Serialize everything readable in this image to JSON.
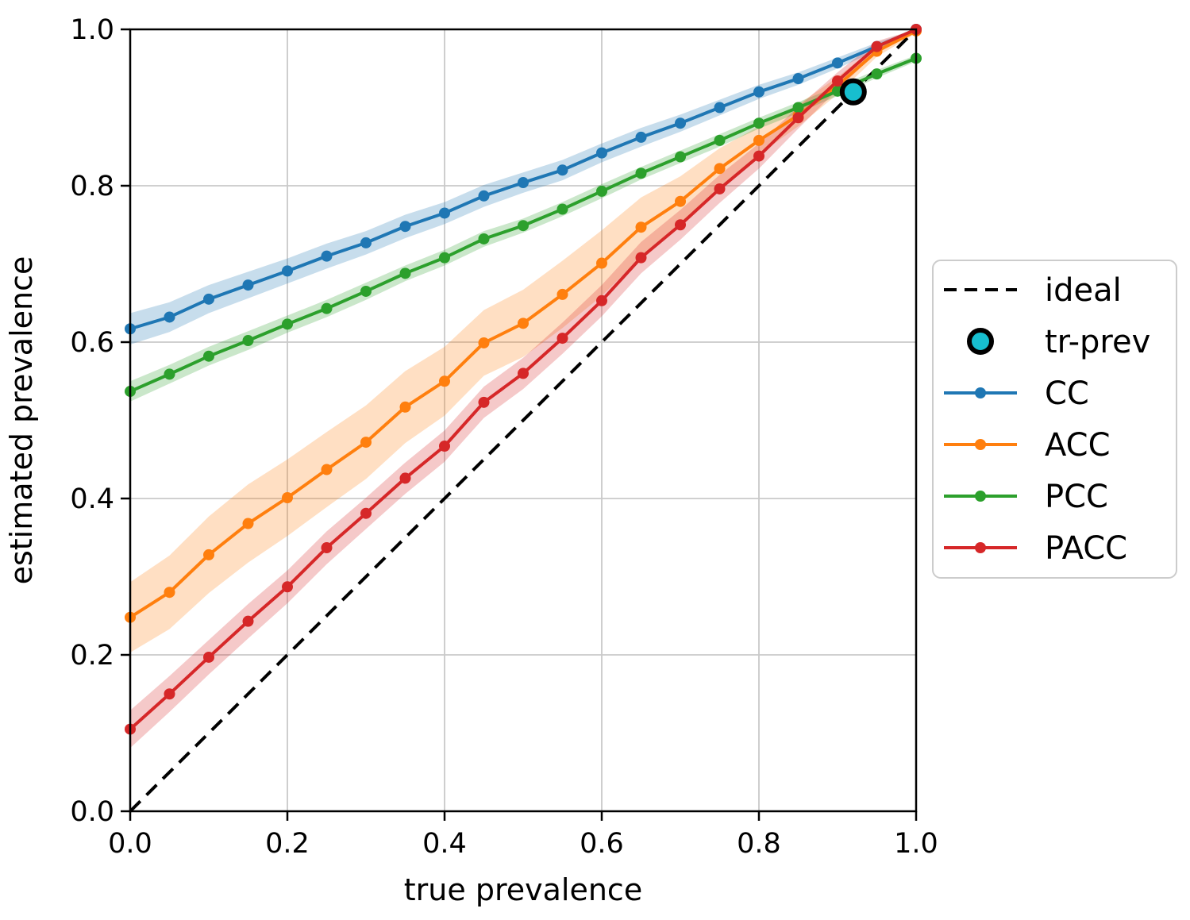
{
  "figure": {
    "background": "#ffffff"
  },
  "chart_data": {
    "type": "line",
    "title": "",
    "xlabel": "true prevalence",
    "ylabel": "estimated prevalence",
    "xlim": [
      0.0,
      1.0
    ],
    "ylim": [
      0.0,
      1.0
    ],
    "grid": true,
    "xticks": {
      "values": [
        0.0,
        0.2,
        0.4,
        0.6,
        0.8,
        1.0
      ],
      "labels": [
        "0.0",
        "0.2",
        "0.4",
        "0.6",
        "0.8",
        "1.0"
      ]
    },
    "yticks": {
      "values": [
        0.0,
        0.2,
        0.4,
        0.6,
        0.8,
        1.0
      ],
      "labels": [
        "0.0",
        "0.2",
        "0.4",
        "0.6",
        "0.8",
        "1.0"
      ]
    },
    "x": [
      0.0,
      0.05,
      0.1,
      0.15,
      0.2,
      0.25,
      0.3,
      0.35,
      0.4,
      0.45,
      0.5,
      0.55,
      0.6,
      0.65,
      0.7,
      0.75,
      0.8,
      0.85,
      0.9,
      0.95,
      1.0
    ],
    "series": [
      {
        "name": "CC",
        "color": "#1f77b4",
        "values": [
          0.617,
          0.632,
          0.655,
          0.673,
          0.691,
          0.71,
          0.727,
          0.748,
          0.765,
          0.787,
          0.804,
          0.82,
          0.842,
          0.862,
          0.88,
          0.9,
          0.92,
          0.937,
          0.957,
          0.978,
          1.0
        ],
        "band": [
          0.02,
          0.019,
          0.018,
          0.017,
          0.016,
          0.016,
          0.015,
          0.015,
          0.014,
          0.014,
          0.013,
          0.013,
          0.012,
          0.012,
          0.011,
          0.01,
          0.009,
          0.008,
          0.007,
          0.005,
          0.002
        ]
      },
      {
        "name": "ACC",
        "color": "#ff7f0e",
        "values": [
          0.248,
          0.28,
          0.328,
          0.368,
          0.401,
          0.437,
          0.472,
          0.517,
          0.55,
          0.599,
          0.624,
          0.661,
          0.701,
          0.747,
          0.78,
          0.822,
          0.858,
          0.89,
          0.928,
          0.972,
          0.998
        ],
        "band": [
          0.045,
          0.047,
          0.049,
          0.05,
          0.049,
          0.048,
          0.047,
          0.046,
          0.044,
          0.042,
          0.043,
          0.043,
          0.042,
          0.038,
          0.032,
          0.026,
          0.018,
          0.014,
          0.011,
          0.007,
          0.003
        ]
      },
      {
        "name": "PCC",
        "color": "#2ca02c",
        "values": [
          0.537,
          0.559,
          0.582,
          0.602,
          0.623,
          0.643,
          0.665,
          0.688,
          0.708,
          0.732,
          0.749,
          0.77,
          0.793,
          0.816,
          0.837,
          0.858,
          0.88,
          0.9,
          0.921,
          0.943,
          0.963
        ],
        "band": [
          0.013,
          0.012,
          0.012,
          0.012,
          0.011,
          0.011,
          0.011,
          0.01,
          0.01,
          0.01,
          0.009,
          0.009,
          0.009,
          0.008,
          0.008,
          0.008,
          0.007,
          0.007,
          0.006,
          0.005,
          0.004
        ]
      },
      {
        "name": "PACC",
        "color": "#d62728",
        "values": [
          0.105,
          0.15,
          0.197,
          0.243,
          0.287,
          0.337,
          0.381,
          0.426,
          0.467,
          0.523,
          0.56,
          0.605,
          0.653,
          0.708,
          0.75,
          0.796,
          0.838,
          0.887,
          0.934,
          0.978,
          1.0
        ],
        "band": [
          0.024,
          0.023,
          0.022,
          0.022,
          0.021,
          0.021,
          0.02,
          0.02,
          0.02,
          0.02,
          0.02,
          0.02,
          0.02,
          0.02,
          0.019,
          0.018,
          0.016,
          0.014,
          0.011,
          0.007,
          0.003
        ]
      }
    ],
    "ideal": {
      "label": "ideal",
      "color": "#000000",
      "style": "dashed",
      "from": [
        0.0,
        0.0
      ],
      "to": [
        1.0,
        1.0
      ]
    },
    "tr_prev": {
      "label": "tr-prev",
      "x": 0.92,
      "y": 0.92,
      "fill": "#17becf",
      "edge": "#000000"
    },
    "legend": {
      "position": "center-right",
      "entries": [
        {
          "label": "ideal",
          "marker": "dashed-line",
          "color": "#000000"
        },
        {
          "label": "tr-prev",
          "marker": "circle",
          "color": "#17becf"
        },
        {
          "label": "CC",
          "marker": "line-dot",
          "color": "#1f77b4"
        },
        {
          "label": "ACC",
          "marker": "line-dot",
          "color": "#ff7f0e"
        },
        {
          "label": "PCC",
          "marker": "line-dot",
          "color": "#2ca02c"
        },
        {
          "label": "PACC",
          "marker": "line-dot",
          "color": "#d62728"
        }
      ]
    },
    "style_colors": {
      "grid": "#c9c9c9",
      "spine": "#000000",
      "legend_border": "#cccccc",
      "legend_bg": "#ffffff"
    }
  }
}
